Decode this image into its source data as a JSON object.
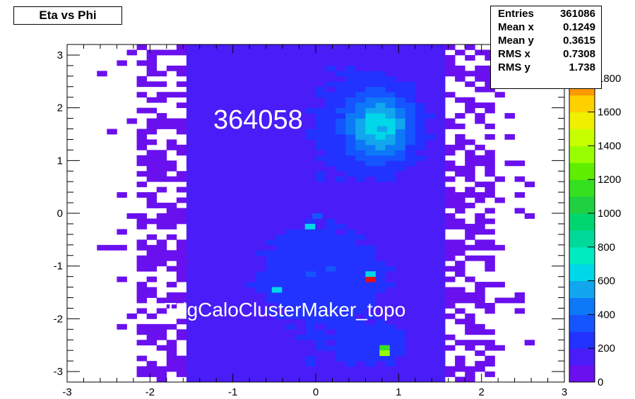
{
  "title": "Eta vs Phi",
  "stats": [
    {
      "label": "Entries",
      "value": "361086"
    },
    {
      "label": "Mean x",
      "value": "0.1249"
    },
    {
      "label": "Mean y",
      "value": "0.3615"
    },
    {
      "label": "RMS x",
      "value": "0.7308"
    },
    {
      "label": "RMS y",
      "value": "1.738"
    }
  ],
  "overlay": {
    "run_number": "364058",
    "algorithm": "TrigCaloClusterMaker_topo"
  },
  "chart_data": {
    "type": "heatmap",
    "title": "Eta vs Phi",
    "xlabel": "",
    "ylabel": "",
    "xlim": [
      -3,
      3
    ],
    "ylim": [
      -3.2,
      3.2
    ],
    "xticks": [
      -3,
      -2,
      -1,
      0,
      1,
      2,
      3
    ],
    "yticks": [
      -3,
      -2,
      -1,
      0,
      1,
      2,
      3
    ],
    "colorbar": {
      "zlim": [
        0,
        2000
      ],
      "ticks": [
        0,
        200,
        400,
        600,
        800,
        1000,
        1200,
        1400,
        1600,
        1800
      ],
      "colors": [
        "#6a10ee",
        "#4a1cf8",
        "#2233ff",
        "#1555ff",
        "#0d79f7",
        "#12a6ee",
        "#00d7e8",
        "#00ebc0",
        "#00d99a",
        "#00d670",
        "#20d040",
        "#35e020",
        "#60ee00",
        "#99ff00",
        "#c8ff00",
        "#eef000",
        "#ffd000",
        "#ff9a00",
        "#ff5a00",
        "#e81010"
      ]
    },
    "bins": {
      "nx": 50,
      "ny": 64
    },
    "hotspots": [
      {
        "x": 0.8,
        "y": 1.6,
        "z": 550
      },
      {
        "x": 0.66,
        "y": -1.25,
        "z": 1900
      },
      {
        "x": 0.66,
        "y": -1.15,
        "z": 650
      },
      {
        "x": 0.83,
        "y": -2.55,
        "z": 1100
      },
      {
        "x": 0.83,
        "y": -2.65,
        "z": 1350
      },
      {
        "x": -0.07,
        "y": -0.25,
        "z": 650
      },
      {
        "x": 0.02,
        "y": -0.05,
        "z": 380
      },
      {
        "x": -0.47,
        "y": -1.45,
        "z": 600
      }
    ]
  }
}
